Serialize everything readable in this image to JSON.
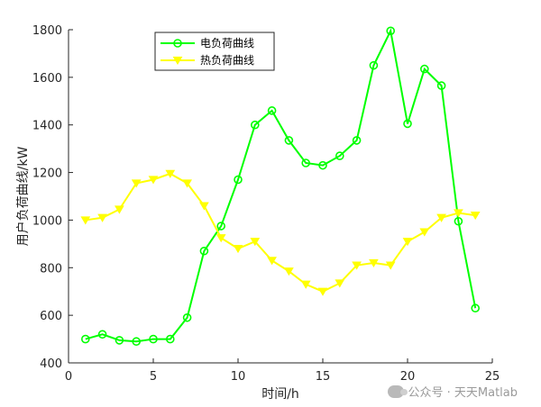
{
  "chart_data": {
    "type": "line",
    "xlabel": "时间/h",
    "ylabel": "用户负荷曲线/kW",
    "xlim": [
      0,
      25
    ],
    "ylim": [
      400,
      1800
    ],
    "xticks": [
      0,
      5,
      10,
      15,
      20,
      25
    ],
    "yticks": [
      400,
      600,
      800,
      1000,
      1200,
      1400,
      1600,
      1800
    ],
    "grid": false,
    "legend_position": "top-left",
    "x": [
      1,
      2,
      3,
      4,
      5,
      6,
      7,
      8,
      9,
      10,
      11,
      12,
      13,
      14,
      15,
      16,
      17,
      18,
      19,
      20,
      21,
      22,
      23,
      24
    ],
    "series": [
      {
        "name": "电负荷曲线",
        "color": "#00ff00",
        "marker": "circle",
        "values": [
          500,
          520,
          495,
          490,
          500,
          500,
          590,
          870,
          975,
          1170,
          1400,
          1460,
          1335,
          1240,
          1230,
          1270,
          1335,
          1650,
          1795,
          1405,
          1635,
          1565,
          995,
          630
        ]
      },
      {
        "name": "热负荷曲线",
        "color": "#ffff00",
        "marker": "triangle-down",
        "values": [
          1000,
          1010,
          1045,
          1155,
          1170,
          1195,
          1155,
          1060,
          925,
          880,
          910,
          830,
          785,
          730,
          700,
          735,
          810,
          820,
          810,
          910,
          950,
          1010,
          1030,
          1020
        ]
      }
    ]
  },
  "watermark": "公众号 · 天天Matlab"
}
